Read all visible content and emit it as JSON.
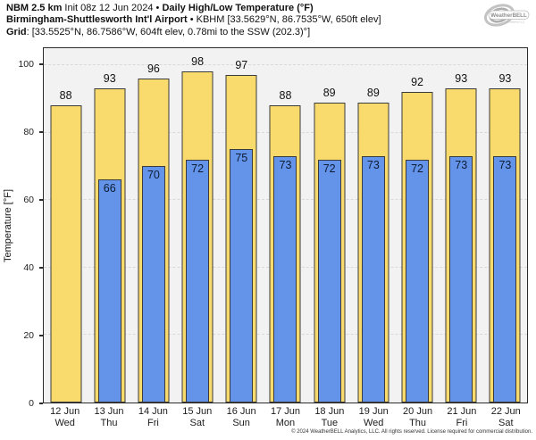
{
  "header": {
    "line1_bold1": "NBM 2.5 km",
    "line1_regular": " Init 08z 12 Jun 2024 • ",
    "line1_bold2": "Daily High/Low Temperature (°F)",
    "line2_bold": "Birmingham-Shuttlesworth Int'l Airport",
    "line2_regular": " • KBHM [33.5629°N, 86.7535°W, 650ft elev]",
    "line3_bold": "Grid",
    "line3_regular": ": [33.5525°N, 86.7586°W, 604ft elev, 0.78mi to the SSW (202.3)°]"
  },
  "logo": {
    "brand": "WeatherBELL",
    "sub": "Analytics LLC"
  },
  "chart_data": {
    "type": "bar",
    "title": "Daily High/Low Temperature (°F)",
    "ylabel": "Temperature [°F]",
    "ylim": [
      0,
      105
    ],
    "yticks": [
      0,
      20,
      40,
      60,
      80,
      100
    ],
    "grid": "horizontal dashed",
    "legend": "none",
    "categories": [
      {
        "date": "12 Jun",
        "day": "Wed"
      },
      {
        "date": "13 Jun",
        "day": "Thu"
      },
      {
        "date": "14 Jun",
        "day": "Fri"
      },
      {
        "date": "15 Jun",
        "day": "Sat"
      },
      {
        "date": "16 Jun",
        "day": "Sun"
      },
      {
        "date": "17 Jun",
        "day": "Mon"
      },
      {
        "date": "18 Jun",
        "day": "Tue"
      },
      {
        "date": "19 Jun",
        "day": "Wed"
      },
      {
        "date": "20 Jun",
        "day": "Thu"
      },
      {
        "date": "21 Jun",
        "day": "Fri"
      },
      {
        "date": "22 Jun",
        "day": "Sat"
      }
    ],
    "series": [
      {
        "name": "High",
        "color": "#F9DB6D",
        "values": [
          88,
          93,
          96,
          98,
          97,
          88,
          89,
          89,
          92,
          93,
          93
        ]
      },
      {
        "name": "Low",
        "color": "#6394EA",
        "values": [
          null,
          66,
          70,
          72,
          75,
          73,
          72,
          73,
          72,
          73,
          73
        ]
      }
    ],
    "colors": {
      "plot_background": "#f2f2f2",
      "bar_border": "#3b3b3b",
      "gridline": "#d9d9d9",
      "spine": "#2b2b2b"
    }
  },
  "footer": {
    "copyright": "© 2024 WeatherBELL Analytics, LLC. All rights reserved. License required for commercial distribution."
  }
}
